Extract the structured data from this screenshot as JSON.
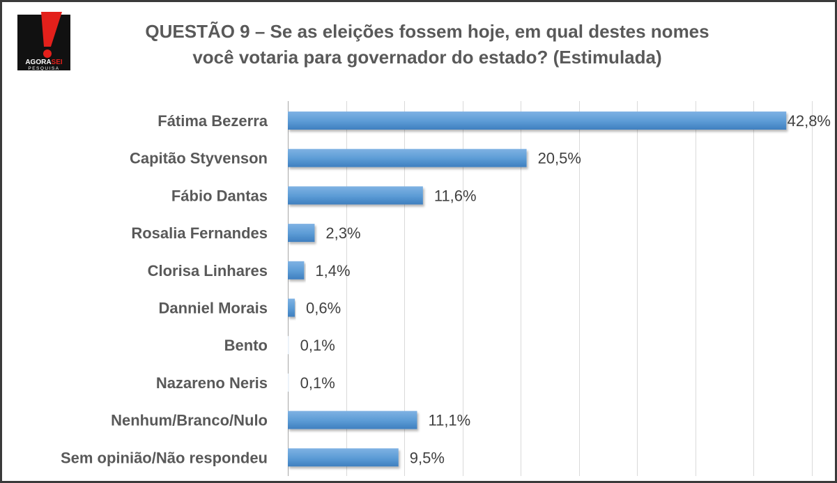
{
  "title_lines": [
    "QUESTÃO 9 – Se as eleições fossem hoje, em qual destes nomes",
    "você votaria para governador do estado? (Estimulada)"
  ],
  "logo": {
    "icon": "exclamation-icon",
    "brand_text_1": "AGORA",
    "brand_text_2": "SEI",
    "tagline": "PESQUISA",
    "colors": {
      "red": "#e3201b",
      "black": "#111111",
      "white": "#ffffff"
    }
  },
  "chart_data": {
    "type": "bar",
    "orientation": "horizontal",
    "categories": [
      "Fátima Bezerra",
      "Capitão Styvenson",
      "Fábio Dantas",
      "Rosalia Fernandes",
      "Clorisa Linhares",
      "Danniel Morais",
      "Bento",
      "Nazareno Neris",
      "Nenhum/Branco/Nulo",
      "Sem opinião/Não respondeu"
    ],
    "values": [
      42.8,
      20.5,
      11.6,
      2.3,
      1.4,
      0.6,
      0.1,
      0.1,
      11.1,
      9.5
    ],
    "value_labels": [
      "42,8%",
      "20,5%",
      "11,6%",
      "2,3%",
      "1,4%",
      "0,6%",
      "0,1%",
      "0,1%",
      "11,1%",
      "9,5%"
    ],
    "xlim": [
      0,
      45
    ],
    "grid": true,
    "legend": "none",
    "bar_color": "#5b9bd5",
    "bar_color_dark": "#3f7fbf"
  }
}
